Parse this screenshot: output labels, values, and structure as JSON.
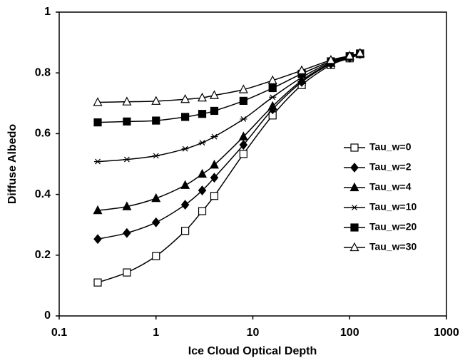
{
  "chart_data": {
    "type": "line",
    "x_label": "Ice Cloud Optical Depth",
    "y_label": "Diffuse Albedo",
    "x_scale": "log",
    "x": [
      0.25,
      0.5,
      1,
      2,
      3,
      4,
      8,
      16,
      32,
      64,
      100,
      128
    ],
    "xlim": [
      0.1,
      1000
    ],
    "xticks": [
      0.1,
      1,
      10,
      100,
      1000
    ],
    "ylim": [
      0,
      1
    ],
    "yticks": [
      0,
      0.2,
      0.4,
      0.6,
      0.8,
      1
    ],
    "legend": "lower right",
    "series": [
      {
        "name": "Tau_w=0",
        "color": "#000000",
        "marker": "square-open",
        "values": [
          0.11,
          0.143,
          0.197,
          0.28,
          0.345,
          0.395,
          0.533,
          0.66,
          0.76,
          0.826,
          0.848,
          0.862
        ]
      },
      {
        "name": "Tau_w=2",
        "color": "#000000",
        "marker": "diamond-filled",
        "values": [
          0.253,
          0.273,
          0.308,
          0.366,
          0.413,
          0.455,
          0.563,
          0.68,
          0.77,
          0.83,
          0.85,
          0.862
        ]
      },
      {
        "name": "Tau_w=4",
        "color": "#000000",
        "marker": "triangle-filled",
        "values": [
          0.347,
          0.36,
          0.387,
          0.43,
          0.467,
          0.497,
          0.59,
          0.69,
          0.775,
          0.832,
          0.852,
          0.863
        ]
      },
      {
        "name": "Tau_w=10",
        "color": "#000000",
        "marker": "star",
        "values": [
          0.508,
          0.515,
          0.527,
          0.55,
          0.57,
          0.59,
          0.648,
          0.72,
          0.785,
          0.835,
          0.853,
          0.864
        ]
      },
      {
        "name": "Tau_w=20",
        "color": "#000000",
        "marker": "square-filled",
        "values": [
          0.637,
          0.64,
          0.643,
          0.655,
          0.665,
          0.675,
          0.708,
          0.75,
          0.797,
          0.838,
          0.855,
          0.864
        ]
      },
      {
        "name": "Tau_w=30",
        "color": "#000000",
        "marker": "triangle-open",
        "values": [
          0.703,
          0.705,
          0.707,
          0.713,
          0.718,
          0.726,
          0.745,
          0.775,
          0.808,
          0.842,
          0.856,
          0.865
        ]
      }
    ]
  }
}
